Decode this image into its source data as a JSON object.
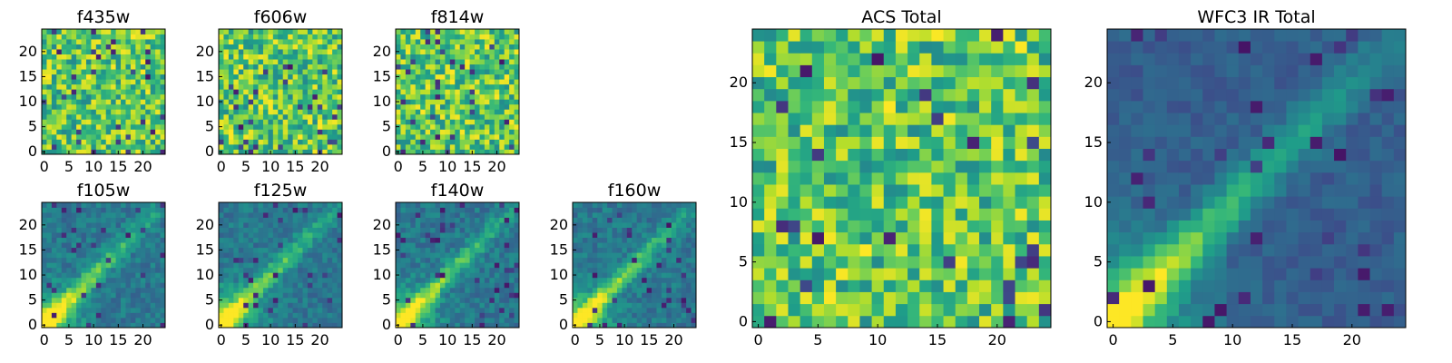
{
  "chart_data": [
    {
      "type": "heatmap",
      "id": "f435w",
      "title": "f435w",
      "grid_size": 25,
      "xticks": [
        0,
        5,
        10,
        15,
        20
      ],
      "yticks": [
        0,
        5,
        10,
        15,
        20
      ],
      "xlim": [
        -0.5,
        24.5
      ],
      "ylim": [
        -0.5,
        24.5
      ],
      "colormap": "viridis",
      "pattern": "noise",
      "seed": 11
    },
    {
      "type": "heatmap",
      "id": "f606w",
      "title": "f606w",
      "grid_size": 25,
      "xticks": [
        0,
        5,
        10,
        15,
        20
      ],
      "yticks": [
        0,
        5,
        10,
        15,
        20
      ],
      "xlim": [
        -0.5,
        24.5
      ],
      "ylim": [
        -0.5,
        24.5
      ],
      "colormap": "viridis",
      "pattern": "noise",
      "seed": 23
    },
    {
      "type": "heatmap",
      "id": "f814w",
      "title": "f814w",
      "grid_size": 25,
      "xticks": [
        0,
        5,
        10,
        15,
        20
      ],
      "yticks": [
        0,
        5,
        10,
        15,
        20
      ],
      "xlim": [
        -0.5,
        24.5
      ],
      "ylim": [
        -0.5,
        24.5
      ],
      "colormap": "viridis",
      "pattern": "noise",
      "seed": 37
    },
    {
      "type": "heatmap",
      "id": "f105w",
      "title": "f105w",
      "grid_size": 25,
      "xticks": [
        0,
        5,
        10,
        15,
        20
      ],
      "yticks": [
        0,
        5,
        10,
        15,
        20
      ],
      "xlim": [
        -0.5,
        24.5
      ],
      "ylim": [
        -0.5,
        24.5
      ],
      "colormap": "viridis",
      "pattern": "streak",
      "seed": 41
    },
    {
      "type": "heatmap",
      "id": "f125w",
      "title": "f125w",
      "grid_size": 25,
      "xticks": [
        0,
        5,
        10,
        15,
        20
      ],
      "yticks": [
        0,
        5,
        10,
        15,
        20
      ],
      "xlim": [
        -0.5,
        24.5
      ],
      "ylim": [
        -0.5,
        24.5
      ],
      "colormap": "viridis",
      "pattern": "streak",
      "seed": 53
    },
    {
      "type": "heatmap",
      "id": "f140w",
      "title": "f140w",
      "grid_size": 25,
      "xticks": [
        0,
        5,
        10,
        15,
        20
      ],
      "yticks": [
        0,
        5,
        10,
        15,
        20
      ],
      "xlim": [
        -0.5,
        24.5
      ],
      "ylim": [
        -0.5,
        24.5
      ],
      "colormap": "viridis",
      "pattern": "streak",
      "seed": 67
    },
    {
      "type": "heatmap",
      "id": "f160w",
      "title": "f160w",
      "grid_size": 25,
      "xticks": [
        0,
        5,
        10,
        15,
        20
      ],
      "yticks": [
        0,
        5,
        10,
        15,
        20
      ],
      "xlim": [
        -0.5,
        24.5
      ],
      "ylim": [
        -0.5,
        24.5
      ],
      "colormap": "viridis",
      "pattern": "streak",
      "seed": 79
    },
    {
      "type": "heatmap",
      "id": "acs-total",
      "title": "ACS Total",
      "grid_size": 25,
      "xticks": [
        0,
        5,
        10,
        15,
        20
      ],
      "yticks": [
        0,
        5,
        10,
        15,
        20
      ],
      "xlim": [
        -0.5,
        24.5
      ],
      "ylim": [
        -0.5,
        24.5
      ],
      "colormap": "viridis",
      "pattern": "noise",
      "seed": 97
    },
    {
      "type": "heatmap",
      "id": "wfc3-ir-total",
      "title": "WFC3 IR Total",
      "grid_size": 25,
      "xticks": [
        0,
        5,
        10,
        15,
        20
      ],
      "yticks": [
        0,
        5,
        10,
        15,
        20
      ],
      "xlim": [
        -0.5,
        24.5
      ],
      "ylim": [
        -0.5,
        24.5
      ],
      "colormap": "viridis",
      "pattern": "streak-smooth",
      "seed": 113
    }
  ],
  "colors": {
    "viridis": [
      "#440154",
      "#482878",
      "#3e4989",
      "#31688e",
      "#26828e",
      "#1f9e89",
      "#35b779",
      "#6ece58",
      "#b5de2b",
      "#fde725"
    ],
    "axis": "#000000",
    "background": "#ffffff"
  }
}
